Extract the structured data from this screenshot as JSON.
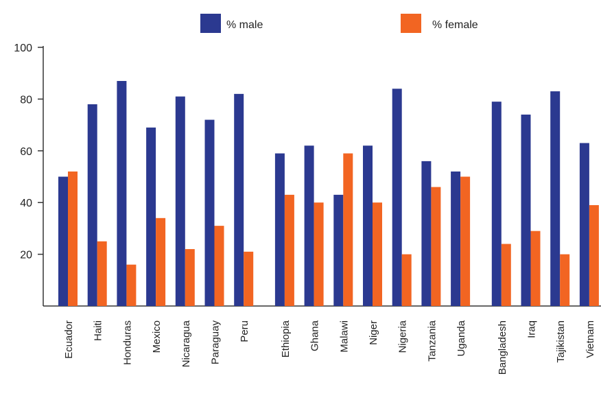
{
  "chart_data": {
    "type": "bar",
    "title": "",
    "xlabel": "",
    "ylabel": "",
    "ylim": [
      0,
      100
    ],
    "yticks": [
      20,
      40,
      60,
      80,
      100
    ],
    "grid": false,
    "legend_position": "top-center",
    "groups": [
      [
        "Ecuador",
        "Haiti",
        "Honduras",
        "Mexico",
        "Nicaragua",
        "Paraguay",
        "Peru"
      ],
      [
        "Ethiopia",
        "Ghana",
        "Malawi",
        "Niger",
        "Nigeria",
        "Tanzania",
        "Uganda"
      ],
      [
        "Bangladesh",
        "Iraq",
        "Tajikistan",
        "Vietnam"
      ]
    ],
    "categories": [
      "Ecuador",
      "Haiti",
      "Honduras",
      "Mexico",
      "Nicaragua",
      "Paraguay",
      "Peru",
      "Ethiopia",
      "Ghana",
      "Malawi",
      "Niger",
      "Nigeria",
      "Tanzania",
      "Uganda",
      "Bangladesh",
      "Iraq",
      "Tajikistan",
      "Vietnam"
    ],
    "series": [
      {
        "name": "% male",
        "color": "#2b3990",
        "values": [
          50,
          78,
          87,
          69,
          81,
          72,
          82,
          59,
          62,
          43,
          62,
          84,
          56,
          52,
          79,
          74,
          83,
          63
        ]
      },
      {
        "name": "% female",
        "color": "#f26522",
        "values": [
          52,
          25,
          16,
          34,
          22,
          31,
          21,
          43,
          40,
          59,
          40,
          20,
          46,
          50,
          24,
          29,
          20,
          39
        ]
      }
    ]
  }
}
